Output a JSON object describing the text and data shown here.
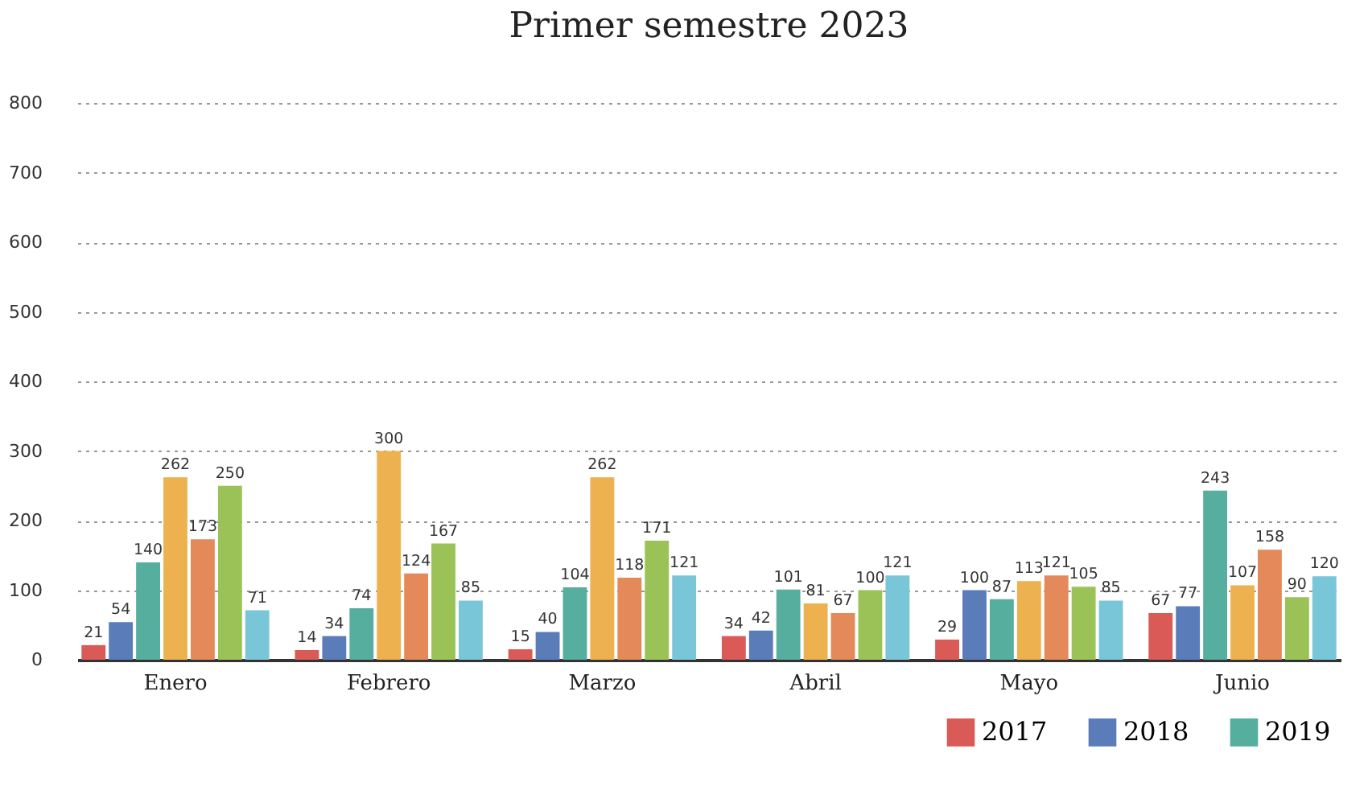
{
  "chart_data": {
    "type": "bar",
    "title": "Primer semestre 2023",
    "categories": [
      "Enero",
      "Febrero",
      "Marzo",
      "Abril",
      "Mayo",
      "Junio"
    ],
    "series": [
      {
        "name": "2017",
        "color": "#d95a57",
        "values": [
          21,
          14,
          15,
          34,
          29,
          67
        ]
      },
      {
        "name": "2018",
        "color": "#5a7dba",
        "values": [
          54,
          34,
          40,
          42,
          100,
          77
        ]
      },
      {
        "name": "2019",
        "color": "#56ae9e",
        "values": [
          140,
          74,
          104,
          101,
          87,
          243
        ]
      },
      {
        "color": "#edb24f",
        "values": [
          262,
          300,
          262,
          81,
          113,
          107
        ]
      },
      {
        "color": "#e4895a",
        "values": [
          173,
          124,
          118,
          67,
          121,
          158
        ]
      },
      {
        "color": "#9bc257",
        "values": [
          250,
          167,
          171,
          100,
          105,
          90
        ]
      },
      {
        "color": "#7ac6d9",
        "values": [
          71,
          85,
          121,
          121,
          85,
          120
        ]
      }
    ],
    "ylim": [
      0,
      800
    ],
    "yticks": [
      0,
      100,
      200,
      300,
      400,
      500,
      600,
      700,
      800
    ],
    "grid": "y",
    "legend": "bottom right",
    "data_labels": true
  }
}
